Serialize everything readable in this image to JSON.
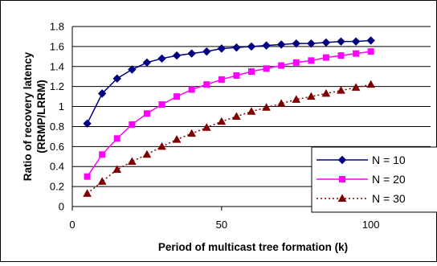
{
  "chart_data": {
    "type": "line",
    "title": "",
    "xlabel": "Period of multicast tree formation (k)",
    "ylabel_lines": [
      "Ratio of recovery latency",
      "(RRMP/LRRM)"
    ],
    "xlim": [
      0,
      120
    ],
    "ylim": [
      0,
      1.8
    ],
    "x_ticks": [
      0,
      50,
      100
    ],
    "y_ticks": [
      0,
      0.2,
      0.4,
      0.6,
      0.8,
      1,
      1.2,
      1.4,
      1.6,
      1.8
    ],
    "y_tick_labels": [
      "0",
      "0.2",
      "0.4",
      "0.6",
      "0.8",
      "1",
      "1.2",
      "1.4",
      "1.6",
      "1.8"
    ],
    "grid": "horizontal",
    "legend_position": "right",
    "x": [
      5,
      10,
      15,
      20,
      25,
      30,
      35,
      40,
      45,
      50,
      55,
      60,
      65,
      70,
      75,
      80,
      85,
      90,
      95,
      100
    ],
    "series": [
      {
        "name": "N = 10",
        "color": "#000080",
        "marker": "diamond",
        "line": "solid",
        "values": [
          0.83,
          1.13,
          1.28,
          1.37,
          1.44,
          1.48,
          1.51,
          1.53,
          1.55,
          1.58,
          1.59,
          1.6,
          1.61,
          1.62,
          1.63,
          1.63,
          1.64,
          1.65,
          1.65,
          1.66
        ]
      },
      {
        "name": "N = 20",
        "color": "#ff00ff",
        "marker": "square",
        "line": "solid",
        "values": [
          0.3,
          0.52,
          0.68,
          0.82,
          0.93,
          1.02,
          1.1,
          1.17,
          1.22,
          1.27,
          1.31,
          1.35,
          1.38,
          1.41,
          1.44,
          1.46,
          1.49,
          1.51,
          1.53,
          1.55
        ]
      },
      {
        "name": "N = 30",
        "color": "#800000",
        "marker": "triangle",
        "line": "dashed",
        "values": [
          0.13,
          0.25,
          0.37,
          0.45,
          0.52,
          0.6,
          0.67,
          0.73,
          0.79,
          0.85,
          0.9,
          0.95,
          0.99,
          1.03,
          1.07,
          1.1,
          1.13,
          1.16,
          1.19,
          1.22
        ]
      }
    ]
  }
}
